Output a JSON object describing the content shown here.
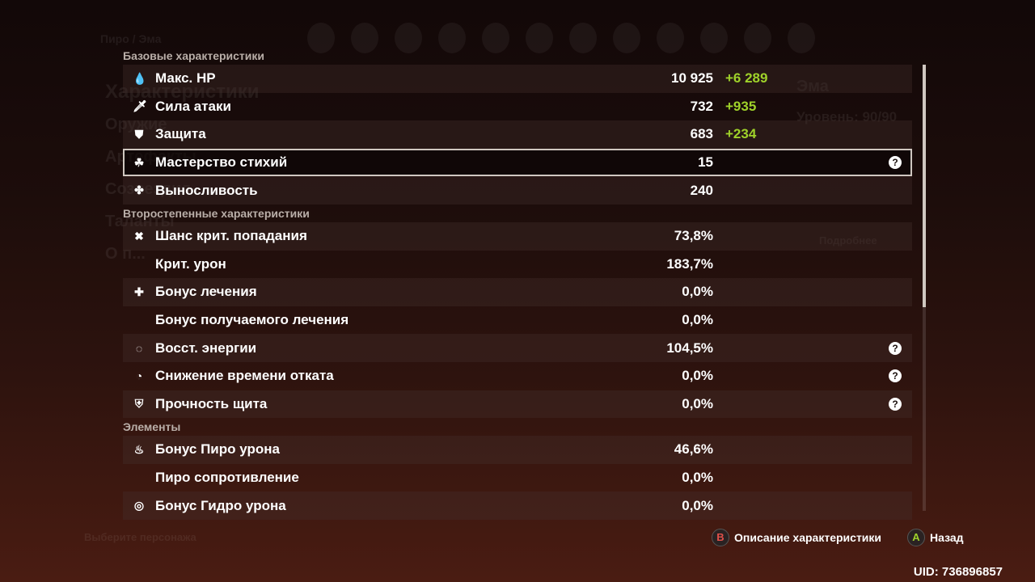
{
  "background": {
    "breadcrumb": "Пиро / Эма",
    "menu": [
      "Характеристики",
      "Оружие",
      "Артефакты",
      "Созвездия",
      "Таланты",
      "О п..."
    ],
    "character_name": "Эма",
    "level": "Уровень: 90/90",
    "details": "Подробнее",
    "select_character": "Выберите персонажа"
  },
  "sections": [
    {
      "title": "Базовые характеристики",
      "rows": [
        {
          "icon": "hp-drop-icon",
          "glyph": "💧",
          "label": "Макс. HP",
          "value": "10 925",
          "bonus": "+6 289"
        },
        {
          "icon": "sword-icon",
          "glyph": "🗡",
          "label": "Сила атаки",
          "value": "732",
          "bonus": "+935"
        },
        {
          "icon": "shield-icon",
          "glyph": "⛊",
          "label": "Защита",
          "value": "683",
          "bonus": "+234"
        },
        {
          "icon": "elemental-mastery-icon",
          "glyph": "☘",
          "label": "Мастерство стихий",
          "value": "15",
          "help": "?",
          "selected": true
        },
        {
          "icon": "stamina-icon",
          "glyph": "✤",
          "label": "Выносливость",
          "value": "240"
        }
      ]
    },
    {
      "title": "Второстепенные характеристики",
      "rows": [
        {
          "icon": "crit-rate-icon",
          "glyph": "✖",
          "label": "Шанс крит. попадания",
          "value": "73,8%"
        },
        {
          "label": "Крит. урон",
          "value": "183,7%"
        },
        {
          "icon": "healing-bonus-icon",
          "glyph": "✚",
          "label": "Бонус лечения",
          "value": "0,0%"
        },
        {
          "label": "Бонус получаемого лечения",
          "value": "0,0%"
        },
        {
          "icon": "energy-recharge-icon",
          "glyph": "◌",
          "label": "Восст. энергии",
          "value": "104,5%",
          "help": "?"
        },
        {
          "icon": "cooldown-icon",
          "glyph": "◔",
          "label": "Снижение времени отката",
          "value": "0,0%",
          "help": "?"
        },
        {
          "icon": "shield-strength-icon",
          "glyph": "⛨",
          "label": "Прочность щита",
          "value": "0,0%",
          "help": "?"
        }
      ]
    },
    {
      "title": "Элементы",
      "rows": [
        {
          "icon": "pyro-icon",
          "glyph": "♨",
          "label": "Бонус Пиро урона",
          "value": "46,6%"
        },
        {
          "label": "Пиро сопротивление",
          "value": "0,0%"
        },
        {
          "icon": "hydro-icon",
          "glyph": "◎",
          "label": "Бонус Гидро урона",
          "value": "0,0%"
        }
      ]
    }
  ],
  "footer": {
    "b_key": "B",
    "b_label": "Описание характеристики",
    "a_key": "A",
    "a_label": "Назад",
    "uid": "UID: 736896857"
  },
  "colors": {
    "bonus": "#9fd22a",
    "b_key": "#e0504a",
    "a_key": "#9fd22a"
  }
}
